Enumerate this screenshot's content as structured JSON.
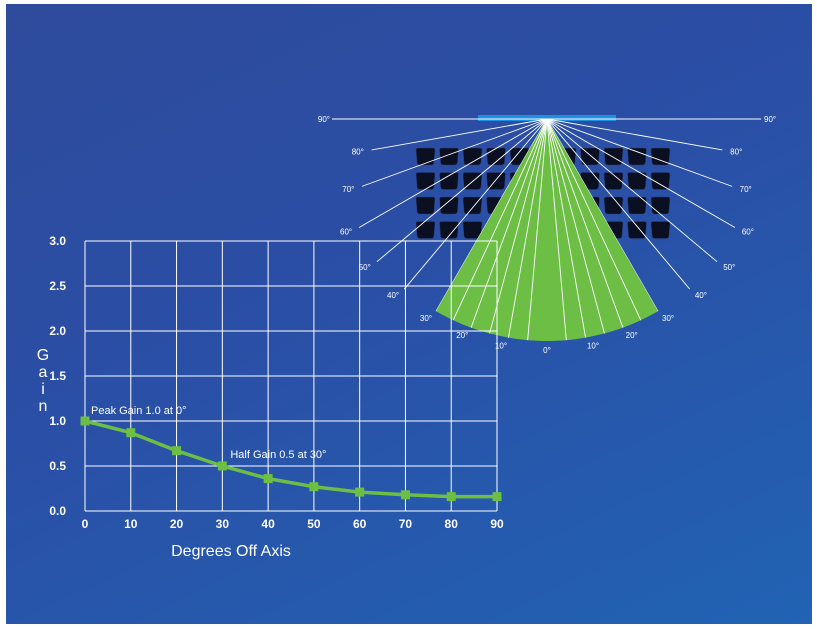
{
  "colors": {
    "background": "#2a4fa6",
    "curve": "#6cbf44",
    "fan": "#6cbf44",
    "speaker_bar": "#1f8fe0",
    "seats": "#0b0f22",
    "grid": "#ffffff"
  },
  "coverage_diagram": {
    "angle_labels_left": [
      "90°",
      "80°",
      "70°",
      "60°",
      "50°",
      "40°",
      "30°",
      "20°",
      "10°"
    ],
    "angle_labels_right": [
      "90°",
      "80°",
      "70°",
      "60°",
      "50°",
      "40°",
      "30°",
      "20°",
      "10°"
    ],
    "center_label": "0°",
    "coverage_angle_deg": 30,
    "seat_rows": 4,
    "seat_columns": 11
  },
  "chart_data": {
    "type": "line",
    "x": [
      0,
      10,
      20,
      30,
      40,
      50,
      60,
      70,
      80,
      90
    ],
    "series": [
      {
        "values": [
          1.0,
          0.87,
          0.67,
          0.5,
          0.36,
          0.27,
          0.21,
          0.18,
          0.16,
          0.16
        ]
      }
    ],
    "xlabel": "Degrees Off Axis",
    "ylabel": "Gain",
    "xlim": [
      0,
      90
    ],
    "ylim": [
      0,
      3.0
    ],
    "x_ticks": [
      "0",
      "10",
      "20",
      "30",
      "40",
      "50",
      "60",
      "70",
      "80",
      "90"
    ],
    "y_ticks": [
      "0.0",
      "0.5",
      "1.0",
      "1.5",
      "2.0",
      "2.5",
      "3.0"
    ],
    "grid": true,
    "annotations": [
      {
        "text": "Peak Gain 1.0 at 0°",
        "x": 0,
        "y": 1.0
      },
      {
        "text": "Half Gain 0.5 at 30°",
        "x": 30,
        "y": 0.5
      }
    ]
  }
}
